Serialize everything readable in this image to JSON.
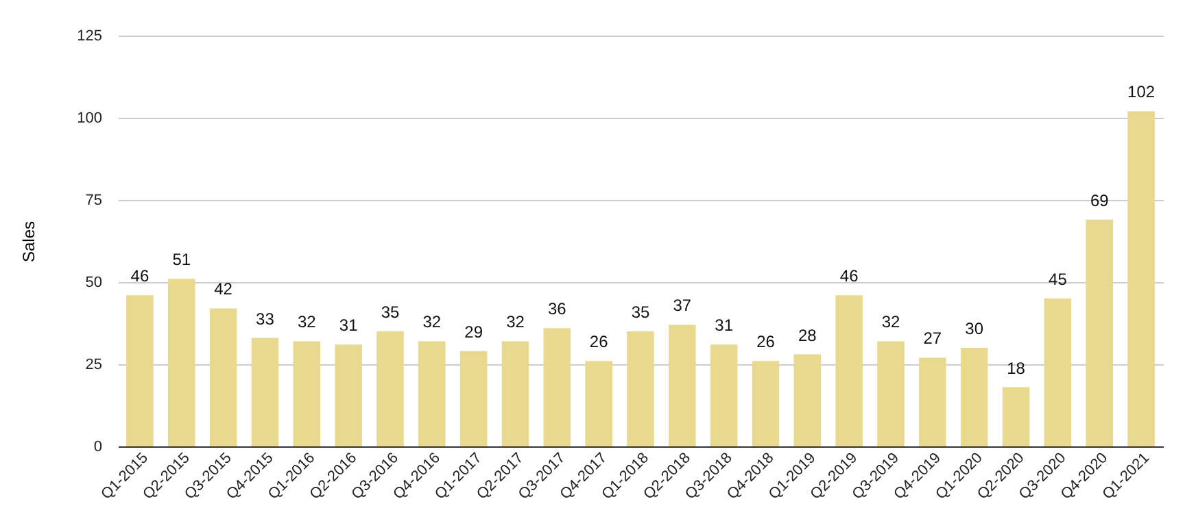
{
  "chart_data": {
    "type": "bar",
    "ylabel": "Sales",
    "categories": [
      "Q1-2015",
      "Q2-2015",
      "Q3-2015",
      "Q4-2015",
      "Q1-2016",
      "Q2-2016",
      "Q3-2016",
      "Q4-2016",
      "Q1-2017",
      "Q2-2017",
      "Q3-2017",
      "Q4-2017",
      "Q1-2018",
      "Q2-2018",
      "Q3-2018",
      "Q4-2018",
      "Q1-2019",
      "Q2-2019",
      "Q3-2019",
      "Q4-2019",
      "Q1-2020",
      "Q2-2020",
      "Q3-2020",
      "Q4-2020",
      "Q1-2021"
    ],
    "values": [
      46,
      51,
      42,
      33,
      32,
      31,
      35,
      32,
      29,
      32,
      36,
      26,
      35,
      37,
      31,
      26,
      28,
      46,
      32,
      27,
      30,
      18,
      45,
      69,
      102
    ],
    "color": "#e9d98f",
    "ylim": [
      0,
      125
    ],
    "yticks": [
      0,
      25,
      50,
      75,
      100,
      125
    ],
    "grid": "y",
    "data_labels": true
  }
}
